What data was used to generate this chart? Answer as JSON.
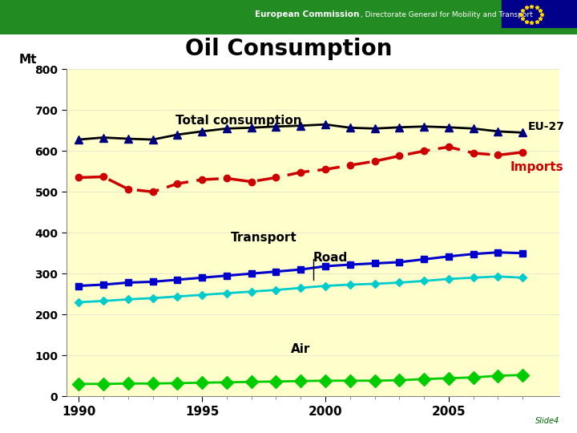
{
  "title": "Oil Consumption",
  "header_text": "European Commission",
  "header_subtext": ", Directorate General for Mobility and Transport",
  "slide_label": "Slide4",
  "ylabel": "Mt",
  "years": [
    1990,
    1991,
    1992,
    1993,
    1994,
    1995,
    1996,
    1997,
    1998,
    1999,
    2000,
    2001,
    2002,
    2003,
    2004,
    2005,
    2006,
    2007,
    2008
  ],
  "total_consumption": [
    628,
    633,
    630,
    628,
    640,
    648,
    655,
    657,
    660,
    662,
    665,
    657,
    655,
    658,
    660,
    658,
    655,
    648,
    645
  ],
  "imports": [
    535,
    537,
    507,
    500,
    520,
    530,
    533,
    525,
    535,
    548,
    555,
    565,
    575,
    588,
    600,
    610,
    595,
    590,
    597
  ],
  "transport": [
    270,
    273,
    278,
    280,
    285,
    290,
    295,
    300,
    305,
    310,
    318,
    322,
    325,
    328,
    335,
    342,
    348,
    352,
    350
  ],
  "road": [
    230,
    233,
    237,
    240,
    244,
    248,
    252,
    256,
    260,
    265,
    270,
    273,
    275,
    278,
    282,
    287,
    290,
    293,
    290
  ],
  "air": [
    30,
    30,
    31,
    31,
    32,
    33,
    34,
    35,
    36,
    37,
    38,
    38,
    38,
    39,
    42,
    44,
    46,
    50,
    52
  ],
  "total_color": "#000080",
  "imports_color": "#cc0000",
  "transport_color": "#0000cc",
  "road_color": "#00cccc",
  "air_color": "#00cc00",
  "chart_bg": "#ffffcc",
  "header_bg": "#228B22",
  "eu_flag_bg": "#00008B",
  "outer_border_color": "#add8e6",
  "separator_color": "#228B22",
  "ylim": [
    0,
    800
  ],
  "yticks": [
    0,
    100,
    200,
    300,
    400,
    500,
    600,
    700,
    800
  ],
  "label_total": "Total consumption",
  "label_imports": "Imports",
  "label_transport": "Transport",
  "label_road": "Road",
  "label_air": "Air",
  "label_eu27": "EU-27"
}
